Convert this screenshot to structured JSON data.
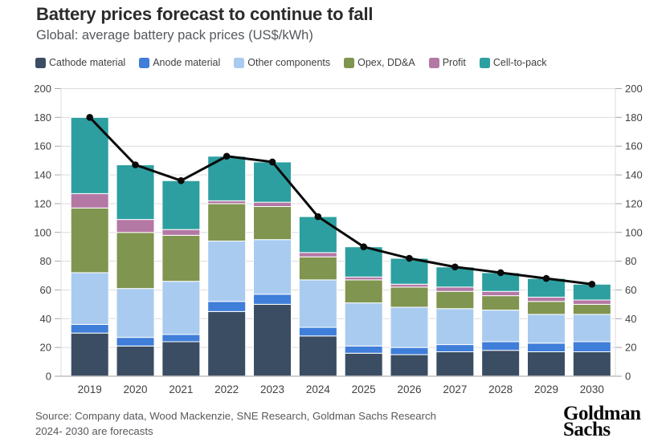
{
  "header": {
    "title": "Battery prices forecast to continue to fall",
    "subtitle": "Global: average battery pack prices (US$/kWh)"
  },
  "chart_data": {
    "type": "bar",
    "stacked": true,
    "dual_axis": true,
    "grid": true,
    "legend_position": "top",
    "categories": [
      "2019",
      "2020",
      "2021",
      "2022",
      "2023",
      "2024",
      "2025",
      "2026",
      "2027",
      "2028",
      "2029",
      "2030"
    ],
    "series": [
      {
        "name": "Cathode material",
        "color": "#3b4d62",
        "values": [
          30,
          21,
          24,
          45,
          50,
          28,
          16,
          15,
          17,
          18,
          17,
          17
        ]
      },
      {
        "name": "Anode material",
        "color": "#3f7ed9",
        "values": [
          6,
          6,
          5,
          7,
          7,
          6,
          5,
          5,
          5,
          6,
          6,
          7
        ]
      },
      {
        "name": "Other components",
        "color": "#a9cbf0",
        "values": [
          36,
          34,
          37,
          42,
          38,
          33,
          30,
          28,
          25,
          22,
          20,
          19
        ]
      },
      {
        "name": "Opex, DD&A",
        "color": "#80954f",
        "values": [
          45,
          39,
          32,
          26,
          23,
          16,
          16,
          14,
          12,
          10,
          9,
          7
        ]
      },
      {
        "name": "Profit",
        "color": "#b478a5",
        "values": [
          10,
          9,
          4,
          2,
          3,
          3,
          2,
          2,
          3,
          3,
          3,
          3
        ]
      },
      {
        "name": "Cell-to-pack",
        "color": "#2d9fa0",
        "values": [
          53,
          38,
          34,
          31,
          28,
          25,
          21,
          18,
          14,
          13,
          13,
          11
        ]
      }
    ],
    "line_series": {
      "name": "Average pack price",
      "color": "#0a0a0a",
      "values": [
        180,
        147,
        136,
        153,
        149,
        111,
        90,
        82,
        76,
        72,
        68,
        64
      ]
    },
    "ylim": [
      0,
      200
    ],
    "ytick_step": 20,
    "xlabel": "",
    "ylabel": ""
  },
  "footer": {
    "source_line1": "Source: Company data, Wood Mackenzie, SNE Research, Goldman Sachs Research",
    "source_line2": "2024- 2030 are forecasts",
    "logo_line1": "Goldman",
    "logo_line2": "Sachs"
  },
  "colors": {
    "grid": "#dcdcdc",
    "axis_line": "#bfbfbf",
    "tick": "#a8a8a8",
    "axis_text": "#414141",
    "title_text": "#2b2b2b",
    "muted_text": "#55585c"
  }
}
